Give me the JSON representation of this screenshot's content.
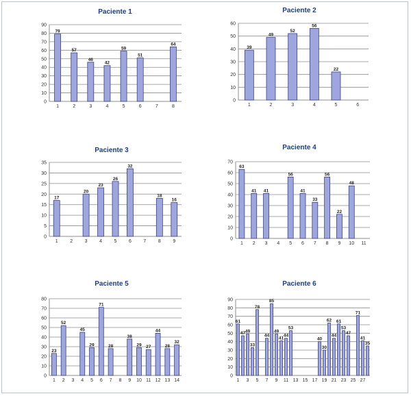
{
  "colors": {
    "bar_fill": "#9da6dd",
    "bar_stroke": "#3c3f8c",
    "grid": "#8c8c8c",
    "title": "#1a3d8f",
    "frame": "#b8c4d6"
  },
  "chart_data": [
    {
      "type": "bar",
      "title": "Paciente 1",
      "xlabel": "",
      "ylabel": "",
      "categories": [
        "1",
        "2",
        "3",
        "4",
        "5",
        "6",
        "7",
        "8"
      ],
      "values": [
        79,
        57,
        46,
        42,
        59,
        51,
        null,
        64
      ],
      "ylim": [
        0,
        90
      ],
      "ystep": 10,
      "grid": true,
      "legend": "none"
    },
    {
      "type": "bar",
      "title": "Paciente 2",
      "xlabel": "",
      "ylabel": "",
      "categories": [
        "1",
        "2",
        "3",
        "4",
        "5",
        "6"
      ],
      "values": [
        39,
        49,
        52,
        56,
        22,
        null
      ],
      "ylim": [
        0,
        60
      ],
      "ystep": 10,
      "grid": true,
      "legend": "none"
    },
    {
      "type": "bar",
      "title": "Paciente 3",
      "xlabel": "",
      "ylabel": "",
      "categories": [
        "1",
        "2",
        "3",
        "4",
        "5",
        "6",
        "7",
        "8",
        "9"
      ],
      "values": [
        17,
        null,
        20,
        23,
        26,
        32,
        null,
        18,
        16
      ],
      "ylim": [
        0,
        35
      ],
      "ystep": 5,
      "grid": true,
      "legend": "none"
    },
    {
      "type": "bar",
      "title": "Paciente 4",
      "xlabel": "",
      "ylabel": "",
      "categories": [
        "1",
        "2",
        "3",
        "4",
        "5",
        "6",
        "7",
        "8",
        "9",
        "10",
        "11"
      ],
      "values": [
        63,
        41,
        41,
        null,
        56,
        41,
        33,
        56,
        22,
        48,
        null
      ],
      "ylim": [
        0,
        70
      ],
      "ystep": 10,
      "grid": true,
      "legend": "none"
    },
    {
      "type": "bar",
      "title": "Paciente 5",
      "xlabel": "",
      "ylabel": "",
      "categories": [
        "1",
        "2",
        "3",
        "4",
        "5",
        "6",
        "7",
        "8",
        "9",
        "10",
        "11",
        "12",
        "13",
        "14"
      ],
      "values": [
        23,
        52,
        null,
        45,
        29,
        71,
        28,
        null,
        38,
        29,
        27,
        44,
        28,
        32
      ],
      "ylim": [
        0,
        80
      ],
      "ystep": 10,
      "grid": true,
      "legend": "none"
    },
    {
      "type": "bar",
      "title": "Paciente 6",
      "xlabel": "",
      "ylabel": "",
      "categories": [
        "1",
        "2",
        "3",
        "4",
        "5",
        "6",
        "7",
        "8",
        "9",
        "10",
        "11",
        "12",
        "13",
        "14",
        "15",
        "16",
        "17",
        "18",
        "19",
        "20",
        "21",
        "22",
        "23",
        "24",
        "25",
        "26",
        "27",
        "28"
      ],
      "tick_labels": [
        "1",
        "",
        "3",
        "",
        "5",
        "",
        "7",
        "",
        "9",
        "",
        "11",
        "",
        "13",
        "",
        "15",
        "",
        "17",
        "",
        "19",
        "",
        "21",
        "",
        "23",
        "",
        "25",
        "",
        "27",
        ""
      ],
      "values": [
        61,
        47,
        49,
        33,
        78,
        null,
        44,
        85,
        49,
        41,
        44,
        53,
        null,
        null,
        null,
        null,
        null,
        40,
        30,
        62,
        44,
        61,
        53,
        47,
        null,
        71,
        41,
        35
      ],
      "ylim": [
        0,
        90
      ],
      "ystep": 10,
      "grid": true,
      "legend": "none"
    }
  ]
}
